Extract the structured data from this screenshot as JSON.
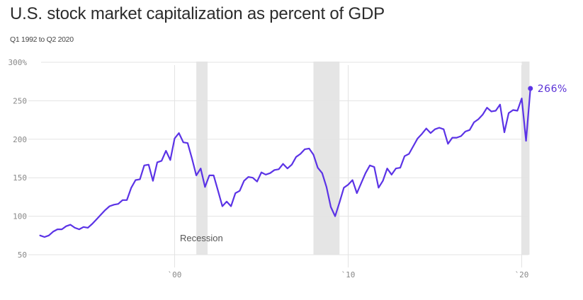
{
  "chart_data": {
    "type": "line",
    "title": "U.S. stock market capitalization as percent of GDP",
    "subtitle": "Q1 1992 to Q2 2020",
    "xlabel": "",
    "ylabel": "",
    "ylim": [
      50,
      300
    ],
    "xlim": [
      1992,
      2020.5
    ],
    "yticks": [
      {
        "value": 300,
        "label": "300%"
      },
      {
        "value": 250,
        "label": "250"
      },
      {
        "value": 200,
        "label": "200"
      },
      {
        "value": 150,
        "label": "150"
      },
      {
        "value": 100,
        "label": "100"
      },
      {
        "value": 50,
        "label": "50"
      }
    ],
    "xticks": [
      {
        "value": 2000,
        "label": "`00"
      },
      {
        "value": 2010,
        "label": "`10"
      },
      {
        "value": 2020,
        "label": "`20"
      }
    ],
    "grid": true,
    "series": [
      {
        "name": "Market cap as % of GDP",
        "color": "#5b33e6",
        "start_year": 1992,
        "start_quarter": 1,
        "frequency": "quarterly",
        "values": [
          75,
          73,
          75,
          80,
          83,
          83,
          87,
          89,
          85,
          83,
          86,
          85,
          90,
          96,
          102,
          108,
          113,
          115,
          116,
          121,
          121,
          137,
          147,
          148,
          166,
          167,
          146,
          170,
          172,
          185,
          173,
          201,
          208,
          196,
          195,
          175,
          153,
          162,
          138,
          153,
          153,
          133,
          113,
          119,
          113,
          130,
          133,
          146,
          151,
          150,
          145,
          157,
          154,
          156,
          160,
          161,
          168,
          162,
          167,
          177,
          181,
          187,
          188,
          180,
          163,
          156,
          138,
          112,
          100,
          118,
          137,
          141,
          147,
          130,
          143,
          156,
          166,
          164,
          137,
          146,
          162,
          154,
          162,
          163,
          178,
          181,
          191,
          201,
          207,
          214,
          208,
          213,
          215,
          213,
          194,
          202,
          202,
          204,
          210,
          212,
          222,
          226,
          232,
          241,
          236,
          237,
          245,
          209,
          234,
          238,
          237,
          253,
          198,
          266
        ]
      }
    ],
    "shaded_regions": [
      {
        "label": "Recession",
        "start": 2001.25,
        "end": 2001.9
      },
      {
        "label": "Recession",
        "start": 2008.0,
        "end": 2009.5
      },
      {
        "label": "Recession",
        "start": 2020.0,
        "end": 2020.45
      }
    ],
    "annotations": [
      {
        "text": "Recession",
        "attached_to": "2001 recession band"
      },
      {
        "text": "266%",
        "attached_to": "last point (Q2 2020)"
      }
    ],
    "legend": "none"
  }
}
